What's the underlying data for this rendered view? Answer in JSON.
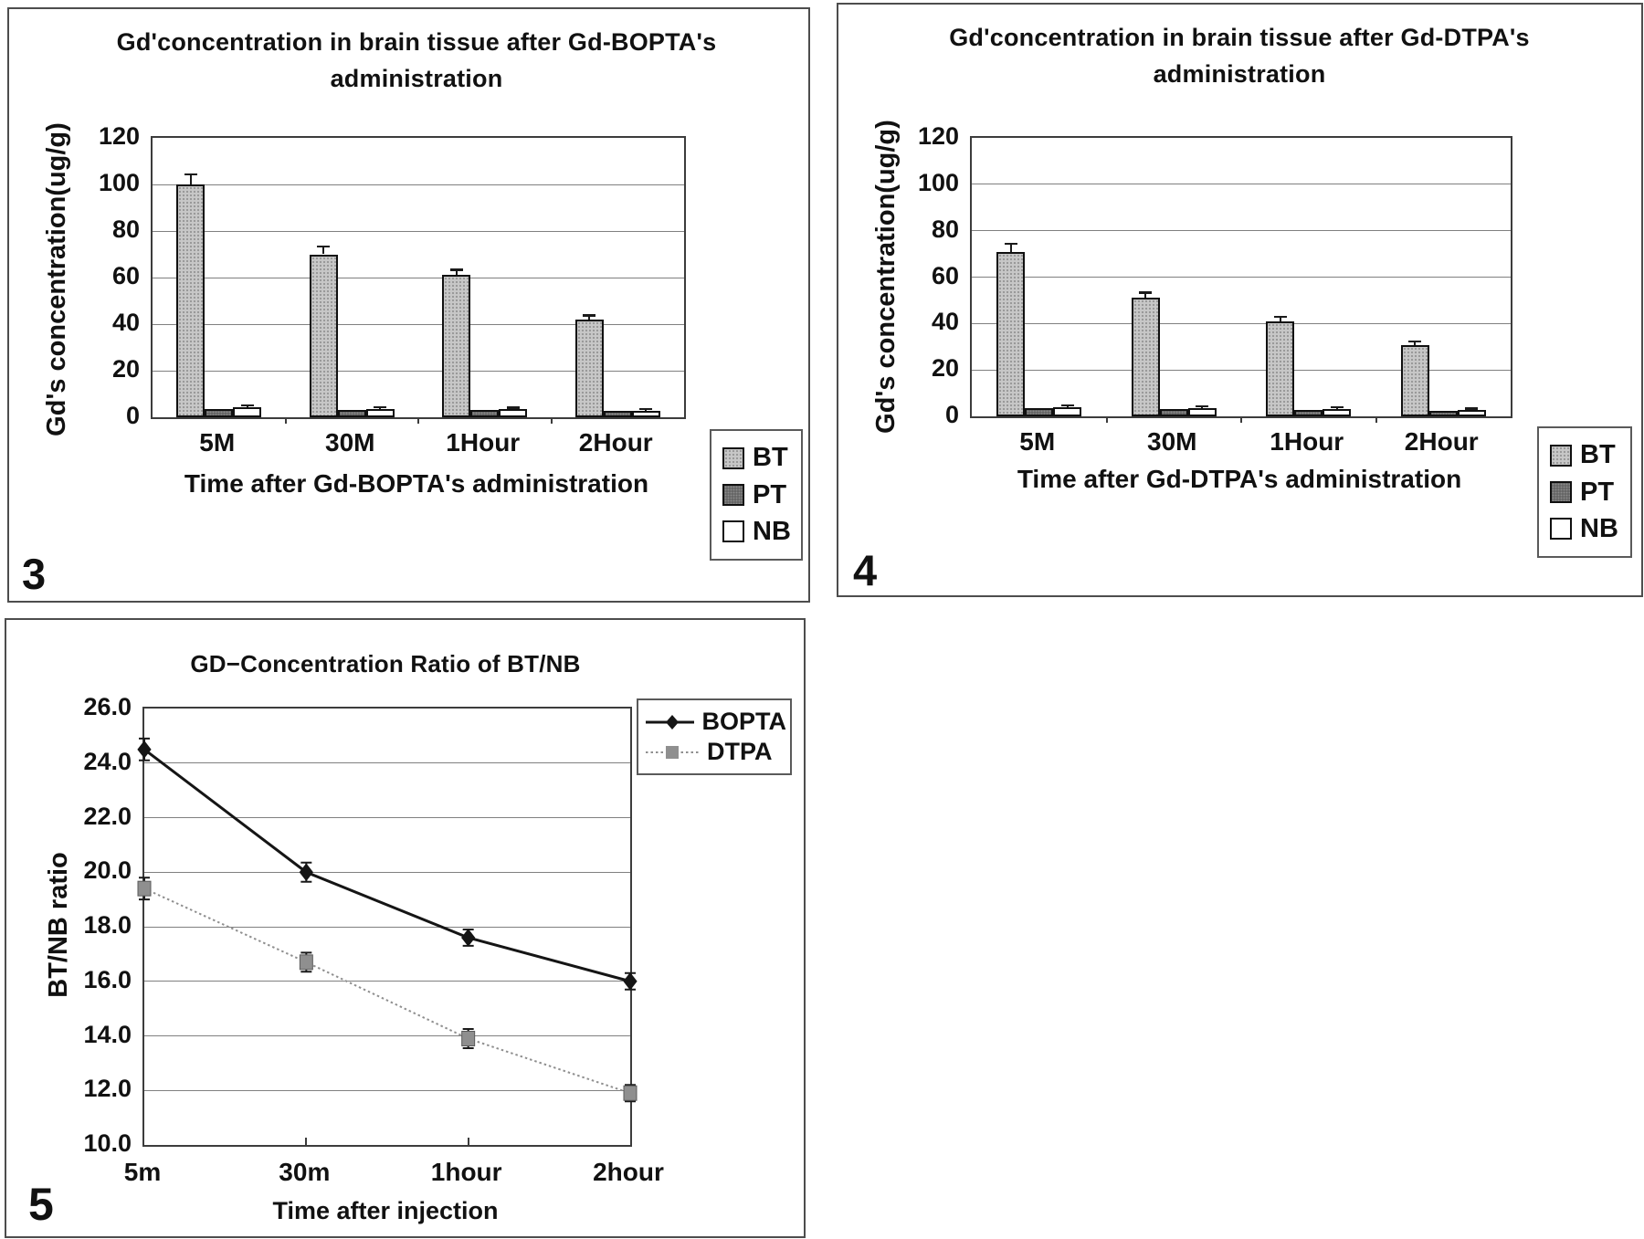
{
  "colors": {
    "text": "#111111",
    "panel_border": "#4d4d4d",
    "frame": "#3c3c3c",
    "grid": "#808080",
    "bar_border": "#101010",
    "bt_fill": "#c7c7c7",
    "pt_fill": "#5e5e5e",
    "nb_fill": "#ffffff",
    "bopta_color": "#151515",
    "dtpa_color": "#8f8f8f",
    "error_color": "#1a1a1a"
  },
  "figures": [
    {
      "number": "3"
    },
    {
      "number": "4"
    },
    {
      "number": "5"
    }
  ],
  "chart_data": [
    {
      "type": "bar",
      "title": "Gd'concentration in brain tissue after Gd-BOPTA's administration",
      "ylabel": "Gd's concentration(ug/g)",
      "xlabel": "Time after Gd-BOPTA's administration",
      "categories": [
        "5M",
        "30M",
        "1Hour",
        "2Hour"
      ],
      "ylim": [
        0,
        120
      ],
      "ytick_labels": [
        "120",
        "100",
        "80",
        "60",
        "40",
        "20",
        "0"
      ],
      "grid": true,
      "legend_position": "right",
      "series": [
        {
          "name": "BT",
          "fill": "bt_fill",
          "values": [
            100,
            70,
            61,
            42
          ],
          "errors": [
            4,
            3,
            2,
            1.5
          ]
        },
        {
          "name": "PT",
          "fill": "pt_fill",
          "values": [
            3.5,
            3.3,
            3.0,
            2.6
          ],
          "errors": [
            0,
            0,
            0,
            0
          ]
        },
        {
          "name": "NB",
          "fill": "nb_fill",
          "values": [
            4.2,
            3.6,
            3.4,
            2.9
          ],
          "errors": [
            0.7,
            0.5,
            0.4,
            0.4
          ]
        }
      ]
    },
    {
      "type": "bar",
      "title": "Gd'concentration in brain tissue after Gd-DTPA's administration",
      "ylabel": "Gd's concentration(ug/g)",
      "xlabel": "Time after Gd-DTPA's administration",
      "categories": [
        "5M",
        "30M",
        "1Hour",
        "2Hour"
      ],
      "ylim": [
        0,
        120
      ],
      "ytick_labels": [
        "120",
        "100",
        "80",
        "60",
        "40",
        "20",
        "0"
      ],
      "grid": true,
      "legend_position": "right",
      "series": [
        {
          "name": "BT",
          "fill": "bt_fill",
          "values": [
            71,
            51,
            41,
            30.5
          ],
          "errors": [
            3,
            2,
            1.5,
            1.5
          ]
        },
        {
          "name": "PT",
          "fill": "pt_fill",
          "values": [
            3.4,
            3.0,
            2.8,
            2.5
          ],
          "errors": [
            0,
            0,
            0,
            0
          ]
        },
        {
          "name": "NB",
          "fill": "nb_fill",
          "values": [
            4.0,
            3.5,
            3.2,
            2.8
          ],
          "errors": [
            0.5,
            0.5,
            0.4,
            0.3
          ]
        }
      ]
    },
    {
      "type": "line",
      "title": "GD−Concentration Ratio of BT/NB",
      "ylabel": "BT/NB ratio",
      "xlabel": "Time after injection",
      "categories": [
        "5m",
        "30m",
        "1hour",
        "2hour"
      ],
      "ylim": [
        10,
        26
      ],
      "ytick_labels": [
        "26.0",
        "24.0",
        "22.0",
        "20.0",
        "18.0",
        "16.0",
        "14.0",
        "12.0",
        "10.0"
      ],
      "grid": true,
      "legend_position": "right",
      "series": [
        {
          "name": "BOPTA",
          "color": "bopta_color",
          "marker": "diamond",
          "line_style": "solid",
          "values": [
            24.5,
            20.0,
            17.6,
            16.0
          ],
          "errors": [
            0.4,
            0.35,
            0.3,
            0.3
          ]
        },
        {
          "name": "DTPA",
          "color": "dtpa_color",
          "marker": "square",
          "line_style": "dotted",
          "values": [
            19.4,
            16.7,
            13.9,
            11.9
          ],
          "errors": [
            0.4,
            0.35,
            0.35,
            0.3
          ]
        }
      ]
    }
  ]
}
